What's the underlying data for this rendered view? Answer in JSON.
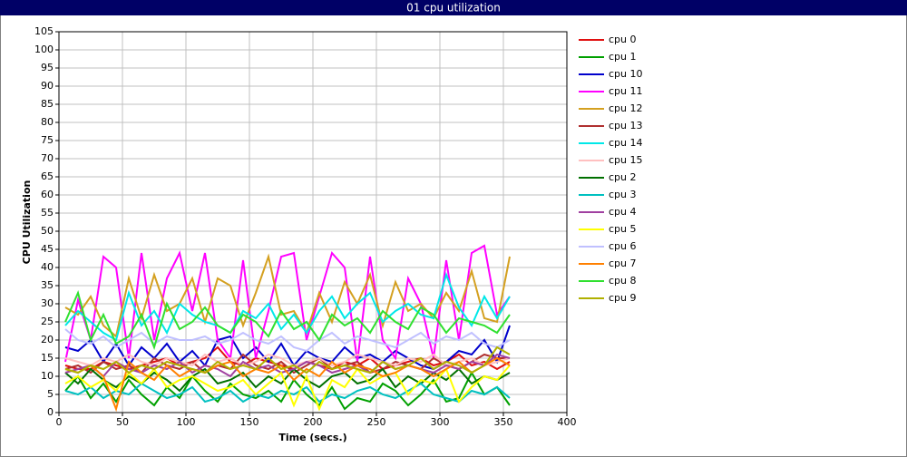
{
  "chart_data": {
    "type": "line",
    "title": "01 cpu utilization",
    "xlabel": "Time (secs.)",
    "ylabel": "CPU Utilization",
    "x": [
      5,
      15,
      25,
      35,
      45,
      55,
      65,
      75,
      85,
      95,
      105,
      115,
      125,
      135,
      145,
      155,
      165,
      175,
      185,
      195,
      205,
      215,
      225,
      235,
      245,
      255,
      265,
      275,
      285,
      295,
      305,
      315,
      325,
      335,
      345,
      355
    ],
    "xlim": [
      0,
      400
    ],
    "xticks": [
      0,
      50,
      100,
      150,
      200,
      250,
      300,
      350,
      400
    ],
    "ylim": [
      0,
      105
    ],
    "yticks": [
      0,
      5,
      10,
      15,
      20,
      25,
      30,
      35,
      40,
      45,
      50,
      55,
      60,
      65,
      70,
      75,
      80,
      85,
      90,
      95,
      100,
      105
    ],
    "grid": true,
    "legend": "right",
    "series": [
      {
        "name": "cpu 0",
        "color": "#e01010",
        "values": [
          13,
          12,
          12,
          14,
          13,
          12,
          13,
          14,
          15,
          13,
          14,
          15,
          18,
          14,
          13,
          15,
          14,
          13,
          12,
          14,
          13,
          12,
          14,
          13,
          15,
          12,
          13,
          14,
          15,
          13,
          14,
          16,
          13,
          14,
          12,
          14
        ]
      },
      {
        "name": "cpu 1",
        "color": "#00a000",
        "values": [
          6,
          10,
          4,
          8,
          3,
          9,
          5,
          2,
          7,
          4,
          10,
          6,
          3,
          8,
          5,
          4,
          6,
          3,
          9,
          5,
          2,
          7,
          1,
          4,
          3,
          8,
          6,
          2,
          5,
          9,
          3,
          4,
          11,
          5,
          7,
          2
        ]
      },
      {
        "name": "cpu 10",
        "color": "#0000cc",
        "values": [
          18,
          17,
          20,
          14,
          19,
          13,
          18,
          15,
          19,
          14,
          17,
          13,
          20,
          21,
          15,
          18,
          14,
          19,
          13,
          17,
          15,
          14,
          18,
          15,
          16,
          14,
          17,
          15,
          13,
          12,
          14,
          17,
          16,
          20,
          14,
          24
        ]
      },
      {
        "name": "cpu 11",
        "color": "#ff00ff",
        "values": [
          14,
          31,
          20,
          43,
          40,
          15,
          44,
          20,
          37,
          44,
          28,
          44,
          20,
          15,
          42,
          15,
          28,
          43,
          44,
          20,
          32,
          44,
          40,
          14,
          43,
          20,
          15,
          37,
          30,
          15,
          42,
          20,
          44,
          46,
          27,
          32
        ]
      },
      {
        "name": "cpu 12",
        "color": "#d4a020",
        "values": [
          29,
          27,
          32,
          24,
          21,
          37,
          26,
          38,
          28,
          30,
          37,
          25,
          37,
          35,
          24,
          33,
          43,
          27,
          28,
          22,
          33,
          25,
          36,
          30,
          38,
          24,
          36,
          28,
          30,
          26,
          33,
          28,
          39,
          26,
          25,
          43
        ]
      },
      {
        "name": "cpu 13",
        "color": "#b03030",
        "values": [
          12,
          13,
          11,
          14,
          12,
          13,
          11,
          15,
          13,
          12,
          14,
          11,
          13,
          12,
          16,
          13,
          12,
          14,
          11,
          13,
          15,
          12,
          13,
          14,
          11,
          12,
          14,
          13,
          12,
          15,
          13,
          12,
          14,
          16,
          15,
          15
        ]
      },
      {
        "name": "cpu 14",
        "color": "#00e8e8",
        "values": [
          24,
          28,
          25,
          22,
          20,
          33,
          24,
          28,
          22,
          30,
          27,
          25,
          24,
          22,
          28,
          26,
          30,
          23,
          27,
          22,
          28,
          32,
          26,
          30,
          33,
          25,
          28,
          30,
          27,
          26,
          38,
          29,
          24,
          32,
          26,
          32
        ]
      },
      {
        "name": "cpu 15",
        "color": "#ffc0c0",
        "values": [
          15,
          14,
          13,
          15,
          14,
          16,
          14,
          13,
          15,
          14,
          13,
          16,
          14,
          15,
          13,
          14,
          16,
          15,
          13,
          14,
          15,
          13,
          14,
          16,
          15,
          14,
          13,
          15,
          14,
          16,
          13,
          14,
          15,
          13,
          14,
          15
        ]
      },
      {
        "name": "cpu 2",
        "color": "#007000",
        "values": [
          11,
          8,
          12,
          9,
          7,
          10,
          8,
          11,
          9,
          6,
          10,
          12,
          8,
          9,
          11,
          7,
          10,
          8,
          12,
          9,
          7,
          10,
          11,
          8,
          9,
          12,
          7,
          10,
          8,
          11,
          9,
          12,
          8,
          10,
          9,
          11
        ]
      },
      {
        "name": "cpu 3",
        "color": "#00c0c0",
        "values": [
          6,
          5,
          7,
          4,
          6,
          5,
          8,
          6,
          4,
          5,
          7,
          3,
          4,
          6,
          3,
          5,
          4,
          6,
          5,
          7,
          3,
          5,
          4,
          6,
          7,
          5,
          4,
          6,
          8,
          5,
          4,
          3,
          6,
          5,
          7,
          4
        ]
      },
      {
        "name": "cpu 4",
        "color": "#a040a0",
        "values": [
          11,
          12,
          13,
          10,
          14,
          12,
          11,
          13,
          12,
          14,
          11,
          13,
          12,
          10,
          14,
          12,
          13,
          11,
          12,
          14,
          13,
          11,
          12,
          13,
          11,
          14,
          12,
          13,
          12,
          11,
          13,
          12,
          14,
          13,
          16,
          15
        ]
      },
      {
        "name": "cpu 5",
        "color": "#ffff00",
        "values": [
          8,
          10,
          7,
          9,
          6,
          11,
          8,
          12,
          7,
          9,
          10,
          8,
          6,
          7,
          9,
          5,
          8,
          11,
          2,
          10,
          1,
          9,
          7,
          12,
          8,
          10,
          11,
          5,
          9,
          8,
          12,
          3,
          7,
          10,
          9,
          13
        ]
      },
      {
        "name": "cpu 6",
        "color": "#c0c0ff",
        "values": [
          23,
          20,
          19,
          21,
          18,
          20,
          22,
          19,
          21,
          20,
          20,
          21,
          19,
          20,
          22,
          20,
          19,
          21,
          18,
          17,
          20,
          22,
          19,
          21,
          20,
          19,
          18,
          20,
          22,
          19,
          21,
          20,
          22,
          19,
          18,
          20
        ]
      },
      {
        "name": "cpu 7",
        "color": "#ff8000",
        "values": [
          12,
          11,
          13,
          10,
          1,
          14,
          11,
          9,
          13,
          10,
          12,
          11,
          13,
          14,
          10,
          12,
          11,
          13,
          9,
          12,
          10,
          14,
          11,
          13,
          12,
          10,
          11,
          13,
          12,
          10,
          12,
          14,
          11,
          13,
          15,
          13
        ]
      },
      {
        "name": "cpu 8",
        "color": "#30e030",
        "values": [
          25,
          33,
          20,
          27,
          19,
          21,
          27,
          18,
          30,
          23,
          25,
          29,
          24,
          22,
          27,
          25,
          21,
          28,
          23,
          25,
          20,
          27,
          24,
          26,
          22,
          28,
          25,
          23,
          29,
          27,
          22,
          26,
          25,
          24,
          22,
          27
        ]
      },
      {
        "name": "cpu 9",
        "color": "#b0b000",
        "values": [
          12,
          11,
          13,
          12,
          14,
          11,
          13,
          12,
          14,
          13,
          12,
          11,
          14,
          12,
          13,
          12,
          15,
          12,
          13,
          11,
          14,
          12,
          13,
          12,
          11,
          14,
          12,
          13,
          15,
          12,
          14,
          13,
          11,
          13,
          18,
          16
        ]
      }
    ]
  }
}
